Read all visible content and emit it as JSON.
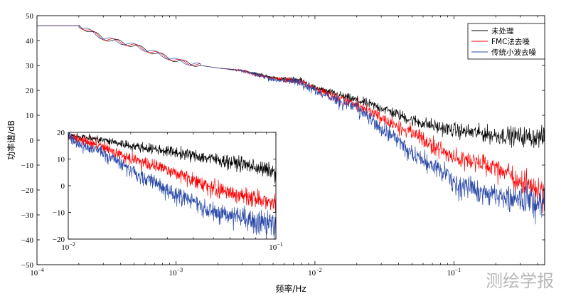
{
  "watermark": "测绘学报",
  "chart_data": [
    {
      "type": "line",
      "xscale": "log",
      "xlabel": "频率/Hz",
      "ylabel": "功率谱/dB",
      "xlim": [
        0.0001,
        0.45
      ],
      "ylim": [
        -50,
        50
      ],
      "yticks": [
        -50,
        -40,
        -30,
        -20,
        -10,
        0,
        10,
        20,
        30,
        40,
        50
      ],
      "xticks": [
        {
          "value": 0.0001,
          "base": "10",
          "exp": "−4"
        },
        {
          "value": 0.001,
          "base": "10",
          "exp": "−3"
        },
        {
          "value": 0.01,
          "base": "10",
          "exp": "−2"
        },
        {
          "value": 0.1,
          "base": "10",
          "exp": "−1"
        }
      ],
      "legend": {
        "placement": "top-right"
      },
      "series": [
        {
          "name": "未处理",
          "color": "#000000",
          "x": [
            0.0001,
            0.0002,
            0.0003,
            0.0005,
            0.0008,
            0.001,
            0.0015,
            0.002,
            0.003,
            0.005,
            0.008,
            0.01,
            0.02,
            0.03,
            0.05,
            0.08,
            0.1,
            0.2,
            0.45
          ],
          "y": [
            46,
            46,
            41,
            38,
            34,
            32,
            30,
            29,
            28,
            25,
            24,
            21,
            16,
            13,
            8,
            5,
            4,
            2,
            1
          ]
        },
        {
          "name": "FMC法去噪",
          "color": "#ff0000",
          "x": [
            0.0001,
            0.0002,
            0.0003,
            0.0005,
            0.0008,
            0.001,
            0.0015,
            0.002,
            0.003,
            0.005,
            0.008,
            0.01,
            0.02,
            0.03,
            0.05,
            0.08,
            0.1,
            0.2,
            0.45
          ],
          "y": [
            46,
            46,
            41,
            38,
            34,
            32,
            30,
            29,
            28,
            25,
            24,
            21,
            15,
            10,
            4,
            -3,
            -5,
            -9,
            -20
          ]
        },
        {
          "name": "传统小波去噪",
          "color": "#2a49a8",
          "x": [
            0.0001,
            0.0002,
            0.0003,
            0.0005,
            0.0008,
            0.001,
            0.0015,
            0.002,
            0.003,
            0.005,
            0.008,
            0.01,
            0.02,
            0.03,
            0.05,
            0.08,
            0.1,
            0.2,
            0.45
          ],
          "y": [
            46,
            46,
            41,
            38,
            34,
            32,
            30,
            29,
            28,
            25,
            24,
            21,
            14,
            6,
            -3,
            -10,
            -15,
            -20,
            -22
          ]
        }
      ]
    },
    {
      "type": "line",
      "xscale": "log",
      "xlim": [
        0.01,
        0.1
      ],
      "ylim": [
        -20,
        20
      ],
      "yticks": [
        -20,
        -10,
        0,
        10,
        20
      ],
      "xticks": [
        {
          "value": 0.01,
          "base": "10",
          "exp": "−2"
        },
        {
          "value": 0.1,
          "base": "10",
          "exp": "−1"
        }
      ],
      "series": [
        {
          "color": "#000000",
          "x": [
            0.01,
            0.015,
            0.02,
            0.03,
            0.05,
            0.07,
            0.1
          ],
          "y": [
            19,
            17,
            15,
            13,
            10,
            8,
            5
          ]
        },
        {
          "color": "#ff0000",
          "x": [
            0.01,
            0.015,
            0.02,
            0.03,
            0.05,
            0.07,
            0.1
          ],
          "y": [
            19,
            15,
            11,
            7,
            0,
            -3,
            -5
          ]
        },
        {
          "color": "#2a49a8",
          "x": [
            0.01,
            0.015,
            0.02,
            0.03,
            0.05,
            0.07,
            0.1
          ],
          "y": [
            19,
            13,
            7,
            0,
            -8,
            -10,
            -12
          ]
        }
      ]
    }
  ]
}
